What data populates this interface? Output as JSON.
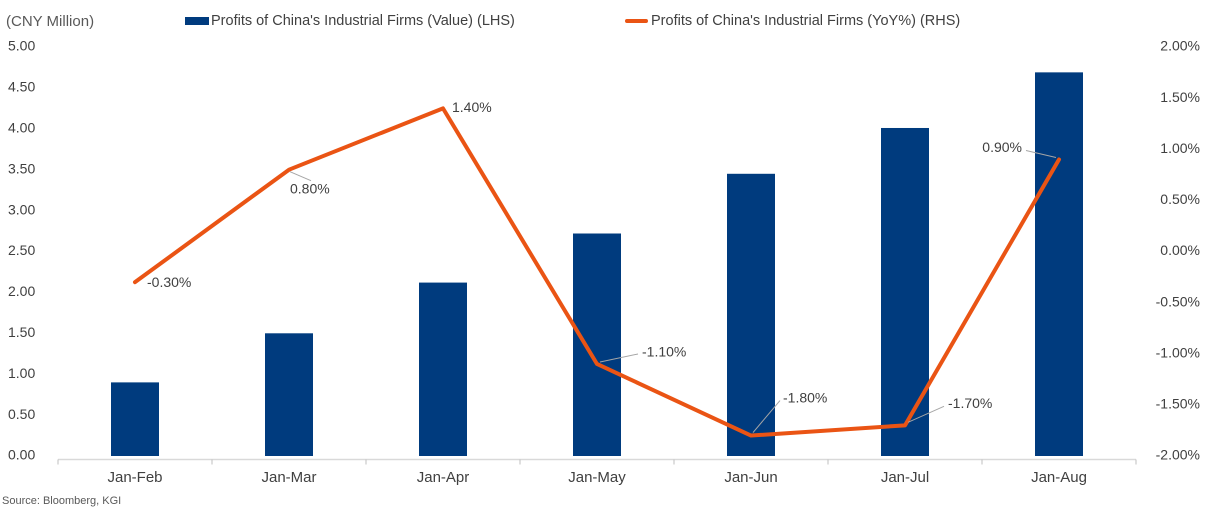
{
  "chart_data": {
    "type": "bar",
    "subtype": "bar+line dual axis",
    "title": "",
    "unit_label": "(CNY Million)",
    "source": "Source: Bloomberg, KGI",
    "grid": false,
    "legend_position": "top",
    "categories": [
      "Jan-Feb",
      "Jan-Mar",
      "Jan-Apr",
      "Jan-May",
      "Jan-Jun",
      "Jan-Jul",
      "Jan-Aug"
    ],
    "series": [
      {
        "name": "Profits of China's Industrial Firms (Value) (LHS)",
        "type": "bar",
        "axis": "left",
        "color": "#003B7E",
        "values": [
          0.9,
          1.5,
          2.12,
          2.72,
          3.45,
          4.01,
          4.69
        ]
      },
      {
        "name": "Profits of China's Industrial Firms (YoY%) (RHS)",
        "type": "line",
        "axis": "right",
        "color": "#EA5414",
        "values": [
          -0.3,
          0.8,
          1.4,
          -1.1,
          -1.8,
          -1.7,
          0.9
        ],
        "point_labels": [
          "-0.30%",
          "0.80%",
          "1.40%",
          "-1.10%",
          "-1.80%",
          "-1.70%",
          "0.90%"
        ]
      }
    ],
    "left_axis": {
      "min": 0,
      "max": 5,
      "step": 0.5,
      "tick_labels": [
        "5.00",
        "4.50",
        "4.00",
        "3.50",
        "3.00",
        "2.50",
        "2.00",
        "1.50",
        "1.00",
        "0.50",
        "0.00"
      ]
    },
    "right_axis": {
      "min": -2,
      "max": 2,
      "step": 0.5,
      "tick_labels": [
        "2.00%",
        "1.50%",
        "1.00%",
        "0.50%",
        "0.00%",
        "-0.50%",
        "-1.00%",
        "-1.50%",
        "-2.00%"
      ]
    },
    "style": {
      "axis_text_color": "#404040",
      "axis_line_color": "#D9D9D9",
      "tick_mark_color": "#BFBFBF",
      "leader_line_color": "#A6A6A6"
    }
  }
}
